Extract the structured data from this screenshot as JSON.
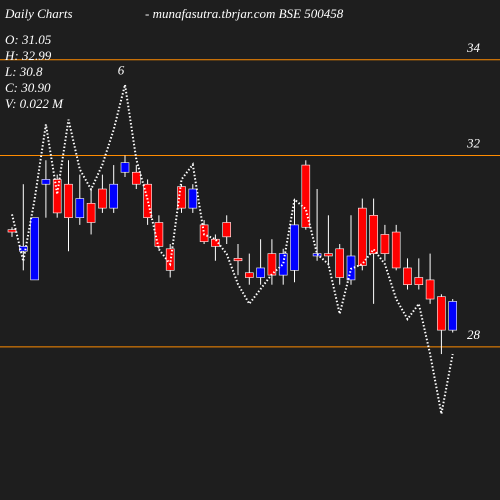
{
  "chart_data": {
    "type": "candlestick",
    "title": "Daily Charts",
    "subtitle": "- munafasutra.tbrjar.com BSE 500458",
    "info": [
      "O: 31.05",
      "H: 32.99",
      "L: 30.8",
      "C: 30.90",
      "V: 0.022 M"
    ],
    "annotation": "6",
    "up_color": "#0000ff",
    "down_color": "#ff0000",
    "grid_color": "#ff8c00",
    "line_color": "#ffffff",
    "ylim": [
      24.8,
      35.25
    ],
    "yticks": [
      34,
      32,
      28
    ],
    "open": [
      30.45,
      30.0,
      29.4,
      31.4,
      31.5,
      31.4,
      30.7,
      31.0,
      31.3,
      30.9,
      31.65,
      31.65,
      31.4,
      30.6,
      30.05,
      31.35,
      30.9,
      30.55,
      30.25,
      30.6,
      29.85,
      29.55,
      29.45,
      29.95,
      29.5,
      29.6,
      31.8,
      29.9,
      29.95,
      30.05,
      29.4,
      30.9,
      30.75,
      30.35,
      30.4,
      29.65,
      29.45,
      29.4,
      29.05,
      28.35
    ],
    "high": [
      30.5,
      31.4,
      30.7,
      31.9,
      31.6,
      31.9,
      31.6,
      31.3,
      31.6,
      31.8,
      32.0,
      31.8,
      31.5,
      30.75,
      30.15,
      31.4,
      31.4,
      30.65,
      30.35,
      30.75,
      30.15,
      29.95,
      30.25,
      30.25,
      30.05,
      31.1,
      31.9,
      31.3,
      30.75,
      30.15,
      30.75,
      31.1,
      31.1,
      30.55,
      30.55,
      29.85,
      29.85,
      29.95,
      29.1,
      29.0
    ],
    "low": [
      30.3,
      29.6,
      29.4,
      30.7,
      30.7,
      30.0,
      30.55,
      30.35,
      30.8,
      30.8,
      31.55,
      31.3,
      30.55,
      30.05,
      29.45,
      30.8,
      30.8,
      30.15,
      29.8,
      30.15,
      29.5,
      29.3,
      29.3,
      29.3,
      29.3,
      29.35,
      30.45,
      29.8,
      29.7,
      29.3,
      29.3,
      29.6,
      28.9,
      29.8,
      29.6,
      29.2,
      29.2,
      28.9,
      27.85,
      28.3
    ],
    "close": [
      30.4,
      30.1,
      30.7,
      31.5,
      30.8,
      30.7,
      31.1,
      30.6,
      30.9,
      31.4,
      31.85,
      31.4,
      30.7,
      30.1,
      29.6,
      30.9,
      31.3,
      30.2,
      30.1,
      30.3,
      29.8,
      29.45,
      29.65,
      29.5,
      29.95,
      30.55,
      30.5,
      29.95,
      29.9,
      29.45,
      29.9,
      29.7,
      29.95,
      29.95,
      29.65,
      29.3,
      29.3,
      29.0,
      28.35,
      28.95
    ],
    "line": [
      30.77,
      29.79,
      31.08,
      32.65,
      31.19,
      32.75,
      31.71,
      31.29,
      31.81,
      32.54,
      33.48,
      31.92,
      31.08,
      30.04,
      29.73,
      31.5,
      31.81,
      30.35,
      30.25,
      29.94,
      29.31,
      28.9,
      29.21,
      29.52,
      29.73,
      31.08,
      30.88,
      29.94,
      29.73,
      28.69,
      29.63,
      29.73,
      30.04,
      29.73,
      29.0,
      28.58,
      28.9,
      27.85,
      26.6,
      27.85
    ],
    "annotation_index": 10
  }
}
